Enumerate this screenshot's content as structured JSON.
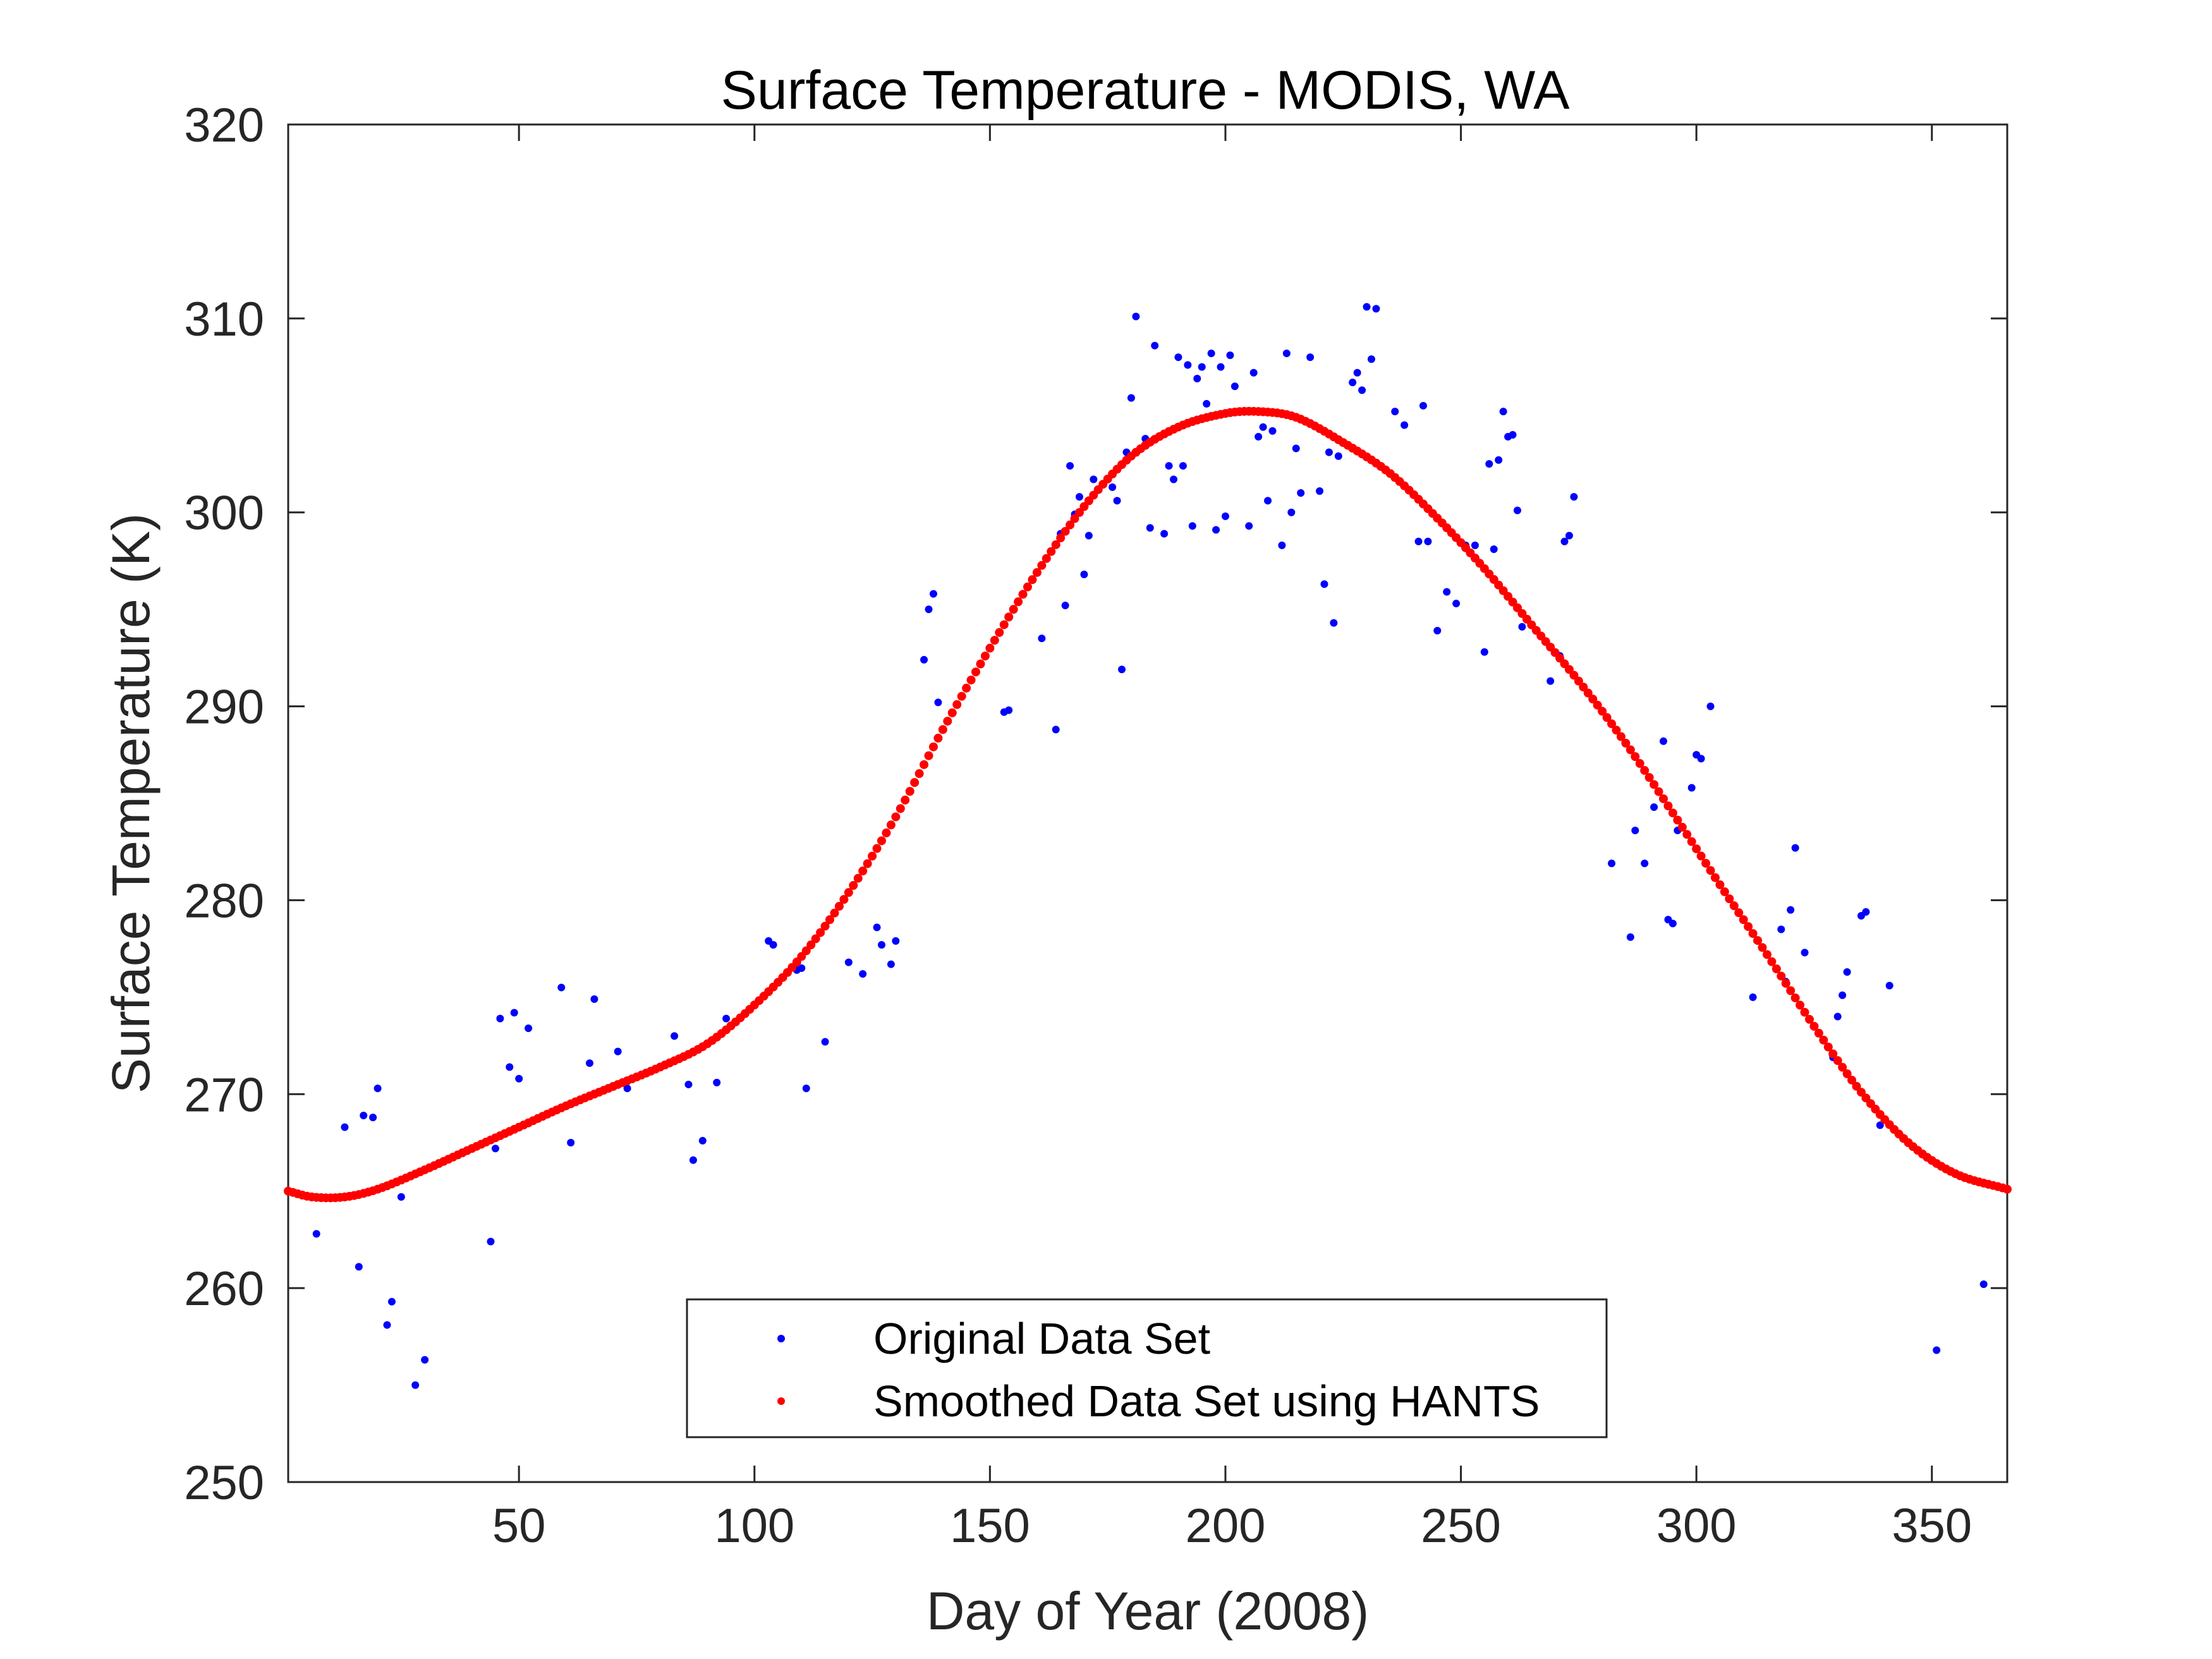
{
  "chart_data": {
    "type": "scatter",
    "title": "Surface Temperature - MODIS, WA",
    "xlabel": "Day of Year (2008)",
    "ylabel": "Surface Temperature (K)",
    "xlim": [
      1,
      366
    ],
    "ylim": [
      250,
      320
    ],
    "xticks": [
      50,
      100,
      150,
      200,
      250,
      300,
      350
    ],
    "yticks": [
      250,
      260,
      270,
      280,
      290,
      300,
      310,
      320
    ],
    "grid": false,
    "box": true,
    "legend_position": "bottom-center",
    "series": [
      {
        "name": "Original Data Set",
        "color": "#0000ff",
        "marker": "dot",
        "points": [
          [
            7,
            262.8
          ],
          [
            13,
            268.3
          ],
          [
            16,
            261.1
          ],
          [
            17,
            268.9
          ],
          [
            19,
            268.8
          ],
          [
            20,
            270.3
          ],
          [
            22,
            258.1
          ],
          [
            23,
            259.3
          ],
          [
            25,
            264.7
          ],
          [
            28,
            255.0
          ],
          [
            30,
            256.3
          ],
          [
            44,
            262.4
          ],
          [
            45,
            267.2
          ],
          [
            46,
            273.9
          ],
          [
            48,
            271.4
          ],
          [
            49,
            274.2
          ],
          [
            50,
            270.8
          ],
          [
            52,
            273.4
          ],
          [
            59,
            275.5
          ],
          [
            61,
            267.5
          ],
          [
            65,
            271.6
          ],
          [
            66,
            274.9
          ],
          [
            71,
            272.2
          ],
          [
            73,
            270.3
          ],
          [
            83,
            273.0
          ],
          [
            86,
            270.5
          ],
          [
            87,
            266.6
          ],
          [
            89,
            267.6
          ],
          [
            92,
            270.6
          ],
          [
            94,
            273.9
          ],
          [
            103,
            277.9
          ],
          [
            104,
            277.7
          ],
          [
            109,
            276.4
          ],
          [
            110,
            276.5
          ],
          [
            111,
            270.3
          ],
          [
            115,
            272.7
          ],
          [
            120,
            276.8
          ],
          [
            123,
            276.2
          ],
          [
            126,
            278.6
          ],
          [
            127,
            277.7
          ],
          [
            129,
            276.7
          ],
          [
            130,
            277.9
          ],
          [
            136,
            292.4
          ],
          [
            137,
            295.0
          ],
          [
            138,
            295.8
          ],
          [
            139,
            290.2
          ],
          [
            153,
            289.7
          ],
          [
            154,
            289.8
          ],
          [
            161,
            293.5
          ],
          [
            164,
            288.8
          ],
          [
            165,
            298.9
          ],
          [
            166,
            295.2
          ],
          [
            167,
            302.4
          ],
          [
            168,
            299.9
          ],
          [
            169,
            300.8
          ],
          [
            170,
            296.8
          ],
          [
            171,
            298.8
          ],
          [
            172,
            301.7
          ],
          [
            176,
            301.3
          ],
          [
            177,
            300.6
          ],
          [
            178,
            291.9
          ],
          [
            179,
            303.1
          ],
          [
            180,
            305.9
          ],
          [
            181,
            310.1
          ],
          [
            183,
            303.8
          ],
          [
            184,
            299.2
          ],
          [
            185,
            308.6
          ],
          [
            187,
            298.9
          ],
          [
            188,
            302.4
          ],
          [
            189,
            301.7
          ],
          [
            190,
            308.0
          ],
          [
            191,
            302.4
          ],
          [
            192,
            307.6
          ],
          [
            193,
            299.3
          ],
          [
            194,
            306.9
          ],
          [
            195,
            307.5
          ],
          [
            196,
            305.6
          ],
          [
            197,
            308.2
          ],
          [
            198,
            299.1
          ],
          [
            199,
            307.5
          ],
          [
            200,
            299.8
          ],
          [
            201,
            308.1
          ],
          [
            202,
            306.5
          ],
          [
            205,
            299.3
          ],
          [
            206,
            307.2
          ],
          [
            207,
            303.9
          ],
          [
            208,
            304.4
          ],
          [
            209,
            300.6
          ],
          [
            210,
            304.2
          ],
          [
            212,
            298.3
          ],
          [
            213,
            308.2
          ],
          [
            214,
            300.0
          ],
          [
            215,
            303.3
          ],
          [
            216,
            301.0
          ],
          [
            218,
            308.0
          ],
          [
            220,
            301.1
          ],
          [
            221,
            296.3
          ],
          [
            222,
            303.1
          ],
          [
            223,
            294.3
          ],
          [
            224,
            302.9
          ],
          [
            227,
            306.7
          ],
          [
            228,
            307.2
          ],
          [
            229,
            306.3
          ],
          [
            230,
            310.6
          ],
          [
            231,
            307.9
          ],
          [
            232,
            310.5
          ],
          [
            236,
            305.2
          ],
          [
            238,
            304.5
          ],
          [
            241,
            298.5
          ],
          [
            242,
            305.5
          ],
          [
            243,
            298.5
          ],
          [
            245,
            293.9
          ],
          [
            247,
            295.9
          ],
          [
            249,
            295.3
          ],
          [
            251,
            298.3
          ],
          [
            253,
            298.3
          ],
          [
            255,
            292.8
          ],
          [
            256,
            302.5
          ],
          [
            257,
            298.1
          ],
          [
            258,
            302.7
          ],
          [
            259,
            305.2
          ],
          [
            260,
            303.9
          ],
          [
            261,
            304.0
          ],
          [
            262,
            300.1
          ],
          [
            263,
            294.1
          ],
          [
            269,
            291.3
          ],
          [
            270,
            292.8
          ],
          [
            271,
            292.6
          ],
          [
            272,
            298.5
          ],
          [
            273,
            298.8
          ],
          [
            274,
            300.8
          ],
          [
            282,
            281.9
          ],
          [
            286,
            278.1
          ],
          [
            287,
            283.6
          ],
          [
            289,
            281.9
          ],
          [
            291,
            284.8
          ],
          [
            293,
            288.2
          ],
          [
            294,
            279.0
          ],
          [
            295,
            278.8
          ],
          [
            296,
            283.6
          ],
          [
            299,
            285.8
          ],
          [
            300,
            287.5
          ],
          [
            301,
            287.3
          ],
          [
            303,
            290.0
          ],
          [
            312,
            275.0
          ],
          [
            318,
            278.5
          ],
          [
            319,
            275.8
          ],
          [
            320,
            279.5
          ],
          [
            321,
            282.7
          ],
          [
            323,
            277.3
          ],
          [
            329,
            271.9
          ],
          [
            330,
            274.0
          ],
          [
            331,
            275.1
          ],
          [
            332,
            276.3
          ],
          [
            335,
            279.2
          ],
          [
            336,
            279.4
          ],
          [
            339,
            268.4
          ],
          [
            341,
            275.6
          ],
          [
            351,
            256.8
          ],
          [
            361,
            260.2
          ]
        ]
      },
      {
        "name": "Smoothed Data Set using HANTS",
        "color": "#ff0000",
        "marker": "dot",
        "points": [
          [
            1,
            265.0
          ],
          [
            6,
            264.7
          ],
          [
            13,
            264.7
          ],
          [
            20,
            265.1
          ],
          [
            30,
            266.1
          ],
          [
            40,
            267.2
          ],
          [
            50,
            268.3
          ],
          [
            60,
            269.4
          ],
          [
            70,
            270.4
          ],
          [
            80,
            271.4
          ],
          [
            90,
            272.6
          ],
          [
            100,
            274.6
          ],
          [
            110,
            277.1
          ],
          [
            120,
            280.4
          ],
          [
            130,
            284.3
          ],
          [
            140,
            288.8
          ],
          [
            150,
            293.0
          ],
          [
            160,
            296.9
          ],
          [
            170,
            300.3
          ],
          [
            180,
            302.9
          ],
          [
            190,
            304.4
          ],
          [
            200,
            305.1
          ],
          [
            207,
            305.2
          ],
          [
            215,
            304.9
          ],
          [
            225,
            303.6
          ],
          [
            235,
            302.0
          ],
          [
            245,
            299.7
          ],
          [
            255,
            297.1
          ],
          [
            265,
            294.2
          ],
          [
            275,
            291.3
          ],
          [
            285,
            288.1
          ],
          [
            295,
            284.5
          ],
          [
            305,
            280.8
          ],
          [
            315,
            277.2
          ],
          [
            325,
            273.5
          ],
          [
            335,
            270.1
          ],
          [
            345,
            267.5
          ],
          [
            355,
            265.9
          ],
          [
            366,
            265.1
          ]
        ]
      }
    ]
  }
}
